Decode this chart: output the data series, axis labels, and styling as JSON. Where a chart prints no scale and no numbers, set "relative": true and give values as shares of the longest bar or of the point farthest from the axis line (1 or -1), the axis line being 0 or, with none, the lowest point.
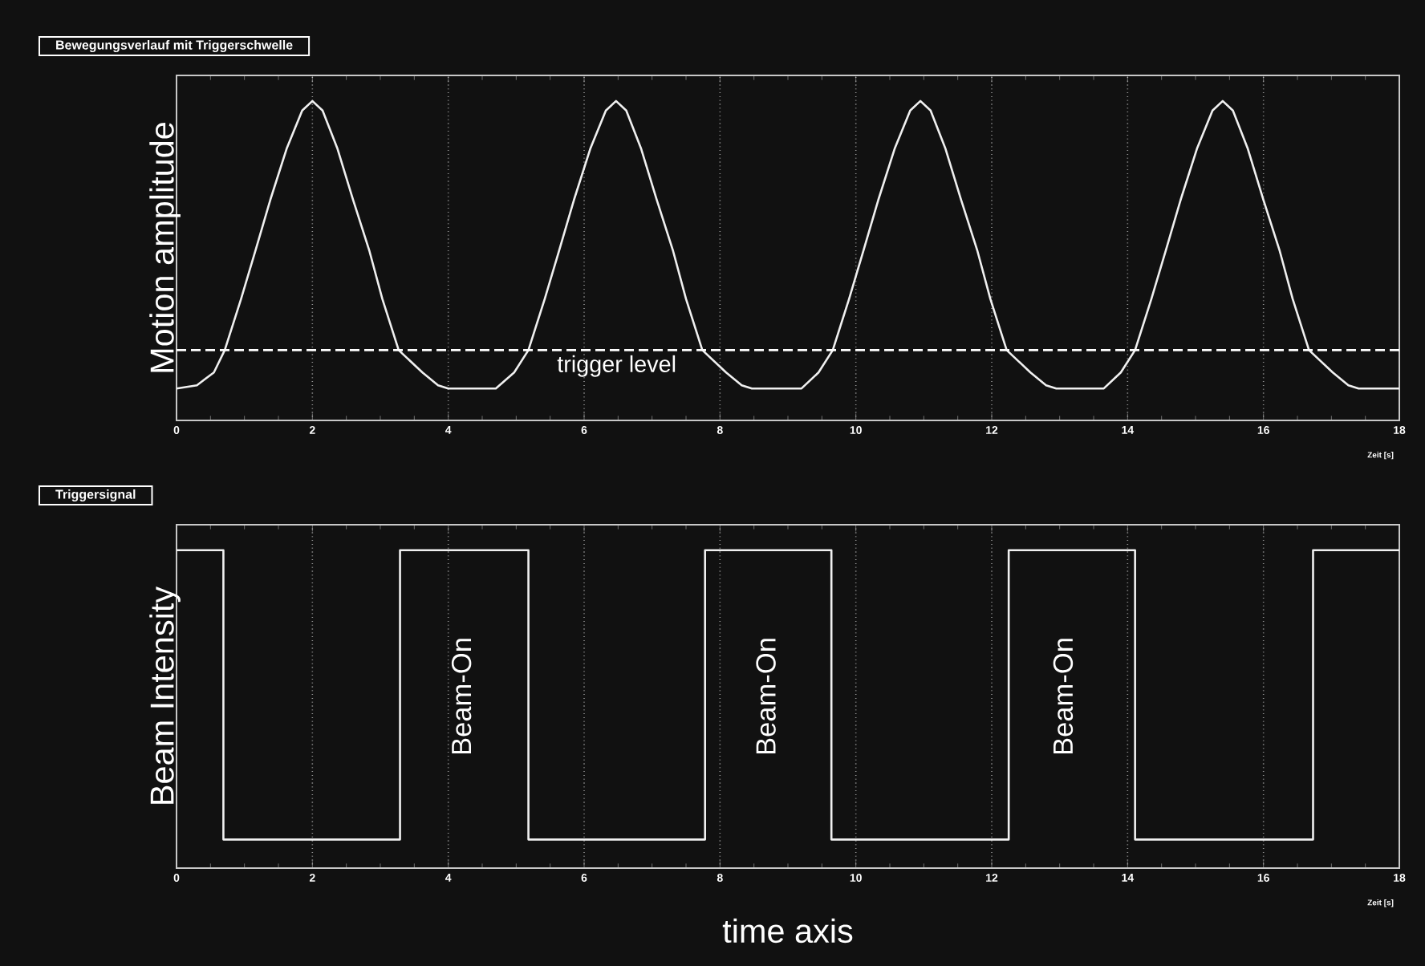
{
  "chart_data": [
    {
      "type": "line",
      "title": "Bewegungsverlauf mit Triggerschwelle",
      "xlabel": "Zeit [s]",
      "ylabel": "Motion amplitude",
      "relative": true,
      "xlim": [
        0,
        18
      ],
      "xticks": [
        0,
        2,
        4,
        6,
        8,
        10,
        12,
        14,
        16,
        18
      ],
      "grid": "x",
      "tick_labels": "x",
      "ref_lines": [
        {
          "axis": "y",
          "value": 0.22,
          "label": "trigger level",
          "color": "#ffffff",
          "line_style": "dashed"
        }
      ],
      "series": [
        {
          "color": "#f0f0f0",
          "x": [
            0,
            0.3,
            0.55,
            0.71,
            0.95,
            1.16,
            1.38,
            1.62,
            1.85,
            2.0,
            2.15,
            2.37,
            2.6,
            2.84,
            3.03,
            3.27,
            3.62,
            3.85,
            4.0,
            4.7,
            4.97,
            5.18,
            5.42,
            5.63,
            5.85,
            6.09,
            6.32,
            6.47,
            6.62,
            6.84,
            7.07,
            7.31,
            7.5,
            7.74,
            8.09,
            8.32,
            8.47,
            9.2,
            9.45,
            9.66,
            9.9,
            10.11,
            10.33,
            10.57,
            10.8,
            10.95,
            11.1,
            11.32,
            11.55,
            11.79,
            11.98,
            12.22,
            12.57,
            12.8,
            12.95,
            13.65,
            13.9,
            14.11,
            14.35,
            14.56,
            14.78,
            15.02,
            15.25,
            15.4,
            15.55,
            15.77,
            16.0,
            16.24,
            16.43,
            16.67,
            17.02,
            17.25,
            17.4,
            18
          ],
          "values": [
            0.1,
            0.11,
            0.15,
            0.22,
            0.38,
            0.53,
            0.69,
            0.85,
            0.97,
            1.0,
            0.97,
            0.85,
            0.69,
            0.53,
            0.38,
            0.22,
            0.15,
            0.11,
            0.1,
            0.1,
            0.15,
            0.22,
            0.38,
            0.53,
            0.69,
            0.85,
            0.97,
            1.0,
            0.97,
            0.85,
            0.69,
            0.53,
            0.38,
            0.22,
            0.15,
            0.11,
            0.1,
            0.1,
            0.15,
            0.22,
            0.38,
            0.53,
            0.69,
            0.85,
            0.97,
            1.0,
            0.97,
            0.85,
            0.69,
            0.53,
            0.38,
            0.22,
            0.15,
            0.11,
            0.1,
            0.1,
            0.15,
            0.22,
            0.38,
            0.53,
            0.69,
            0.85,
            0.97,
            1.0,
            0.97,
            0.85,
            0.69,
            0.53,
            0.38,
            0.22,
            0.15,
            0.11,
            0.1,
            0.1
          ]
        }
      ]
    },
    {
      "type": "line",
      "title": "Triggersignal",
      "xlabel": "Zeit [s]",
      "ylabel": "Beam Intensity",
      "relative": true,
      "xlim": [
        0,
        18
      ],
      "xticks": [
        0,
        2,
        4,
        6,
        8,
        10,
        12,
        14,
        16,
        18
      ],
      "grid": "x",
      "annotations": [
        "Beam-On",
        "Beam-On",
        "Beam-On",
        "time axis"
      ],
      "tick_labels": "x",
      "series": [
        {
          "color": "#f0f0f0",
          "x": [
            0,
            0.69,
            0.69,
            3.29,
            3.29,
            5.18,
            5.18,
            7.78,
            7.78,
            9.64,
            9.64,
            12.25,
            12.25,
            14.11,
            14.11,
            16.73,
            16.73,
            18
          ],
          "values": [
            1,
            1,
            0.09,
            0.09,
            1,
            1,
            0.09,
            0.09,
            1,
            1,
            0.09,
            0.09,
            1,
            1,
            0.09,
            0.09,
            1,
            1
          ]
        }
      ]
    }
  ]
}
